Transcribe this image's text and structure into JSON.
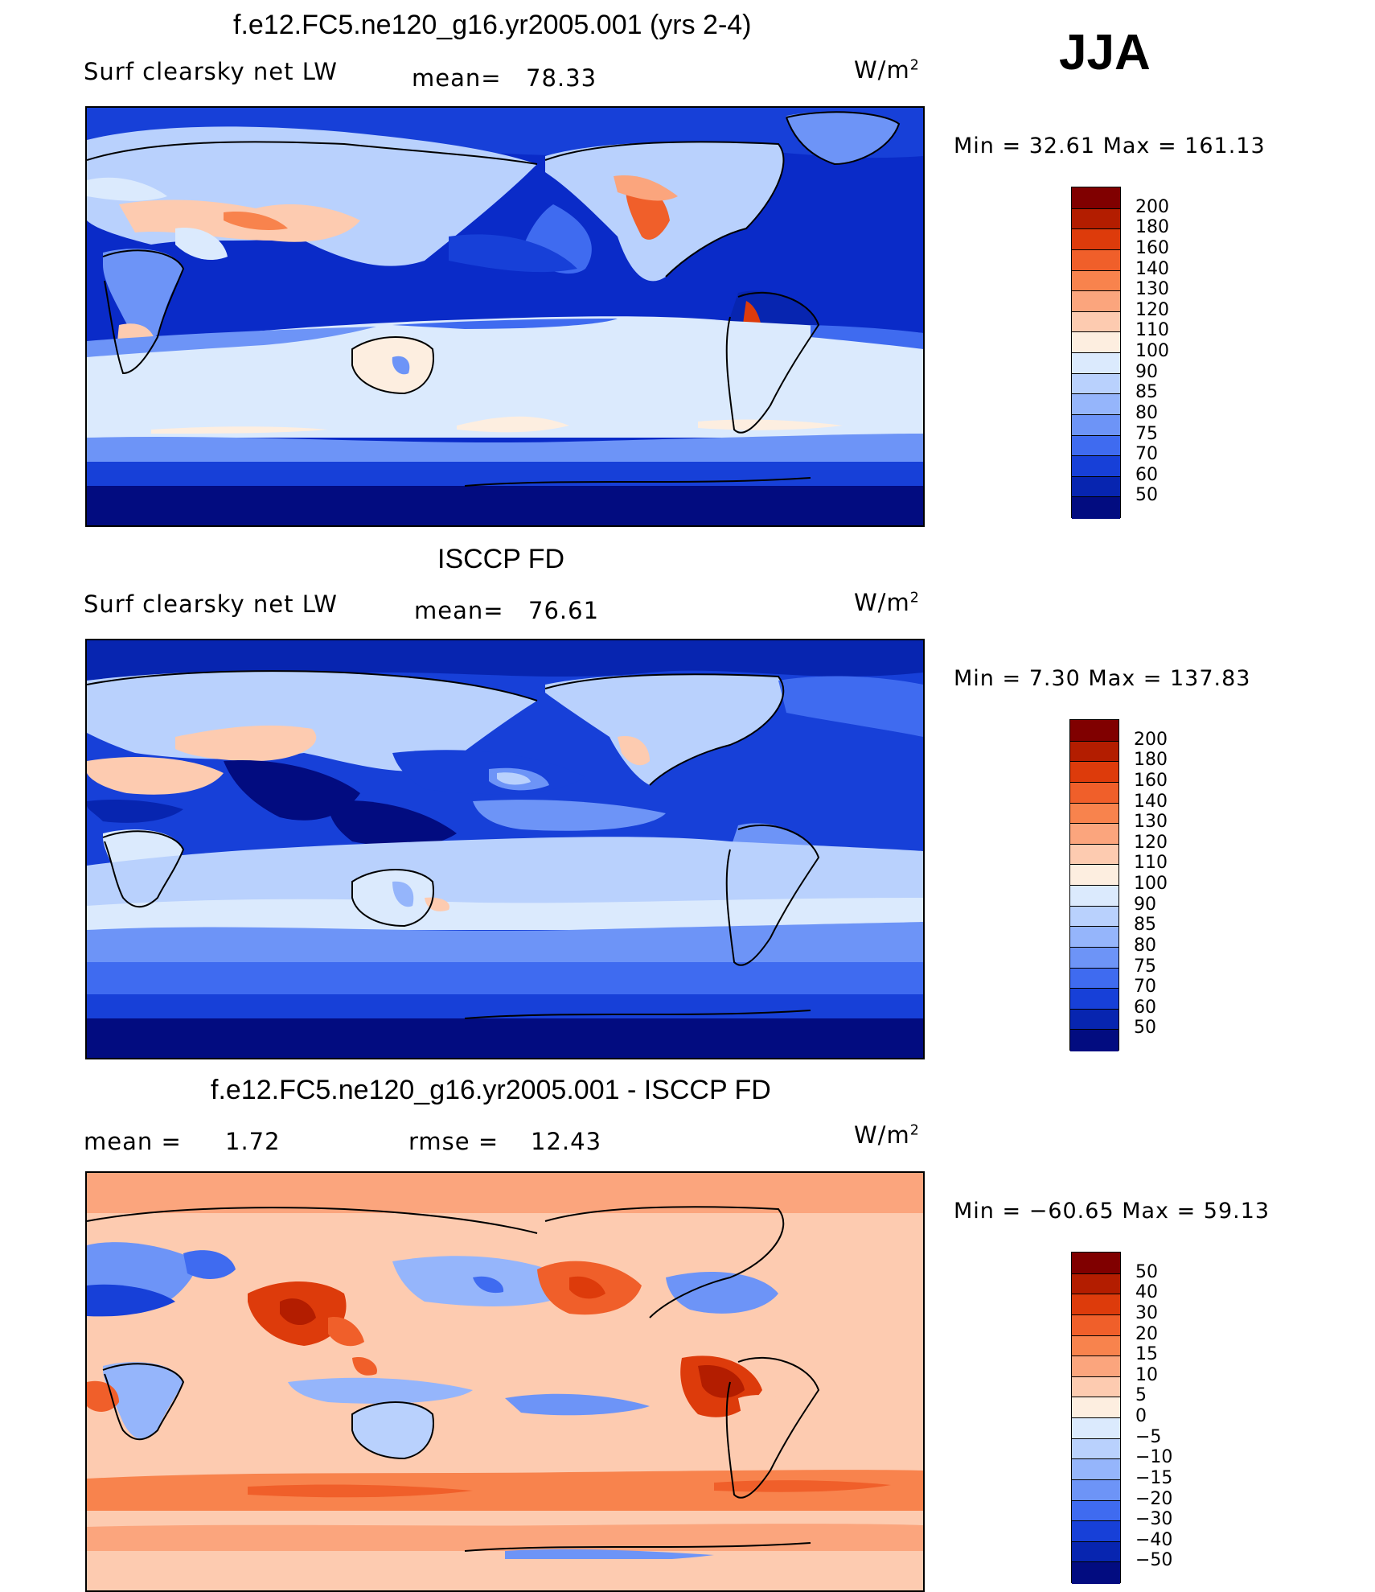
{
  "season": "JJA",
  "panels": [
    {
      "title": "f.e12.FC5.ne120_g16.yr2005.001 (yrs 2-4)",
      "variable": "Surf clearsky net LW",
      "mean_label": "mean=",
      "mean_value": "78.33",
      "units": "W/m",
      "units_sup": "2",
      "minmax": "Min =    32.61  Max  =  161.13",
      "colorbar_labels": [
        "200",
        "180",
        "160",
        "140",
        "130",
        "120",
        "110",
        "100",
        "90",
        "85",
        "80",
        "75",
        "70",
        "60",
        "50"
      ],
      "colormap": "warm"
    },
    {
      "title": "ISCCP FD",
      "variable": "Surf clearsky net LW",
      "mean_label": "mean=",
      "mean_value": "76.61",
      "units": "W/m",
      "units_sup": "2",
      "minmax": "Min =     7.30  Max  =  137.83",
      "colorbar_labels": [
        "200",
        "180",
        "160",
        "140",
        "130",
        "120",
        "110",
        "100",
        "90",
        "85",
        "80",
        "75",
        "70",
        "60",
        "50"
      ],
      "colormap": "warm"
    },
    {
      "title": "f.e12.FC5.ne120_g16.yr2005.001 - ISCCP FD",
      "mean_label": "mean  =",
      "mean_value": "1.72",
      "rmse_label": "rmse  =",
      "rmse_value": "12.43",
      "units": "W/m",
      "units_sup": "2",
      "minmax": "Min  = −60.65  Max  =    59.13",
      "colorbar_labels": [
        "50",
        "40",
        "30",
        "20",
        "15",
        "10",
        "5",
        "0",
        "−5",
        "−10",
        "−15",
        "−20",
        "−30",
        "−40",
        "−50"
      ],
      "colormap": "diff"
    }
  ],
  "colors": {
    "palette_top_to_bottom": [
      "#800000",
      "#b31d00",
      "#dd3b0b",
      "#f05f2a",
      "#f8834d",
      "#fba57d",
      "#fdcbb0",
      "#fdeee0",
      "#dbeafd",
      "#b9d1fd",
      "#95b5fb",
      "#6d94f7",
      "#3f6bf0",
      "#1740d8",
      "#0725b0",
      "#020c80"
    ],
    "ocean_default": "#0a2bc8"
  },
  "chart_data": [
    {
      "type": "heatmap",
      "title": "f.e12.FC5.ne120_g16.yr2005.001 (yrs 2-4)",
      "subtitle": "Surf clearsky net LW",
      "units": "W/m2",
      "mean": 78.33,
      "min": 32.61,
      "max": 161.13,
      "contour_levels": [
        50,
        60,
        70,
        75,
        80,
        85,
        90,
        100,
        110,
        120,
        130,
        140,
        160,
        180,
        200
      ]
    },
    {
      "type": "heatmap",
      "title": "ISCCP FD",
      "subtitle": "Surf clearsky net LW",
      "units": "W/m2",
      "mean": 76.61,
      "min": 7.3,
      "max": 137.83,
      "contour_levels": [
        50,
        60,
        70,
        75,
        80,
        85,
        90,
        100,
        110,
        120,
        130,
        140,
        160,
        180,
        200
      ]
    },
    {
      "type": "heatmap",
      "title": "f.e12.FC5.ne120_g16.yr2005.001 - ISCCP FD",
      "units": "W/m2",
      "mean": 1.72,
      "rmse": 12.43,
      "min": -60.65,
      "max": 59.13,
      "contour_levels": [
        -50,
        -40,
        -30,
        -20,
        -15,
        -10,
        -5,
        0,
        5,
        10,
        15,
        20,
        30,
        40,
        50
      ]
    }
  ]
}
